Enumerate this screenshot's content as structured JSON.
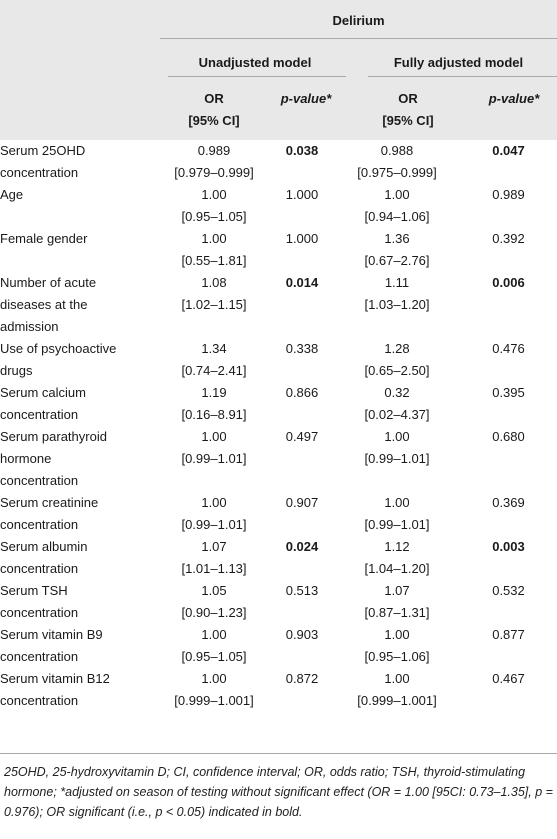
{
  "header": {
    "group": "Delirium",
    "unadjusted": "Unadjusted model",
    "adjusted": "Fully adjusted model",
    "or_line1": "OR",
    "or_line2": "[95% CI]",
    "p_label": "p-value*"
  },
  "rows": [
    {
      "var": [
        "Serum 25OHD",
        "concentration"
      ],
      "or1": [
        "0.989",
        "[0.979–0.999]"
      ],
      "p1": "0.038",
      "p1_bold": true,
      "or2": [
        "0.988",
        "[0.975–0.999]"
      ],
      "p2": "0.047",
      "p2_bold": true
    },
    {
      "var": [
        "Age"
      ],
      "or1": [
        "1.00",
        "[0.95–1.05]"
      ],
      "p1": "1.000",
      "p1_bold": false,
      "or2": [
        "1.00",
        "[0.94–1.06]"
      ],
      "p2": "0.989",
      "p2_bold": false
    },
    {
      "var": [
        "Female gender"
      ],
      "or1": [
        "1.00",
        "[0.55–1.81]"
      ],
      "p1": "1.000",
      "p1_bold": false,
      "or2": [
        "1.36",
        "[0.67–2.76]"
      ],
      "p2": "0.392",
      "p2_bold": false
    },
    {
      "var": [
        "Number of acute",
        "diseases at the",
        "admission"
      ],
      "or1": [
        "1.08",
        "[1.02–1.15]"
      ],
      "p1": "0.014",
      "p1_bold": true,
      "or2": [
        "1.11",
        "[1.03–1.20]"
      ],
      "p2": "0.006",
      "p2_bold": true
    },
    {
      "var": [
        "Use of psychoactive",
        "drugs"
      ],
      "or1": [
        "1.34",
        "[0.74–2.41]"
      ],
      "p1": "0.338",
      "p1_bold": false,
      "or2": [
        "1.28",
        "[0.65–2.50]"
      ],
      "p2": "0.476",
      "p2_bold": false
    },
    {
      "var": [
        "Serum calcium",
        "concentration"
      ],
      "or1": [
        "1.19",
        "[0.16–8.91]"
      ],
      "p1": "0.866",
      "p1_bold": false,
      "or2": [
        "0.32",
        "[0.02–4.37]"
      ],
      "p2": "0.395",
      "p2_bold": false
    },
    {
      "var": [
        "Serum parathyroid",
        "hormone",
        "concentration"
      ],
      "or1": [
        "1.00",
        "[0.99–1.01]"
      ],
      "p1": "0.497",
      "p1_bold": false,
      "or2": [
        "1.00",
        "[0.99–1.01]"
      ],
      "p2": "0.680",
      "p2_bold": false
    },
    {
      "var": [
        "Serum creatinine",
        "concentration"
      ],
      "or1": [
        "1.00",
        "[0.99–1.01]"
      ],
      "p1": "0.907",
      "p1_bold": false,
      "or2": [
        "1.00",
        "[0.99–1.01]"
      ],
      "p2": "0.369",
      "p2_bold": false
    },
    {
      "var": [
        "Serum albumin",
        "concentration"
      ],
      "or1": [
        "1.07",
        "[1.01–1.13]"
      ],
      "p1": "0.024",
      "p1_bold": true,
      "or2": [
        "1.12",
        "[1.04–1.20]"
      ],
      "p2": "0.003",
      "p2_bold": true
    },
    {
      "var": [
        "Serum TSH",
        "concentration"
      ],
      "or1": [
        "1.05",
        "[0.90–1.23]"
      ],
      "p1": "0.513",
      "p1_bold": false,
      "or2": [
        "1.07",
        "[0.87–1.31]"
      ],
      "p2": "0.532",
      "p2_bold": false
    },
    {
      "var": [
        "Serum vitamin B9",
        "concentration"
      ],
      "or1": [
        "1.00",
        "[0.95–1.05]"
      ],
      "p1": "0.903",
      "p1_bold": false,
      "or2": [
        "1.00",
        "[0.95–1.06]"
      ],
      "p2": "0.877",
      "p2_bold": false
    },
    {
      "var": [
        "Serum vitamin B12",
        "concentration"
      ],
      "or1": [
        "1.00",
        "[0.999–1.001]"
      ],
      "p1": "0.872",
      "p1_bold": false,
      "or2": [
        "1.00",
        "[0.999–1.001]"
      ],
      "p2": "0.467",
      "p2_bold": false
    }
  ],
  "footnote": "25OHD, 25-hydroxyvitamin D; CI, confidence interval; OR, odds ratio; TSH, thyroid-stimulating hormone; *adjusted on season of testing without significant effect (OR = 1.00 [95CI: 0.73–1.35], p = 0.976); OR significant (i.e., p < 0.05) indicated in bold."
}
